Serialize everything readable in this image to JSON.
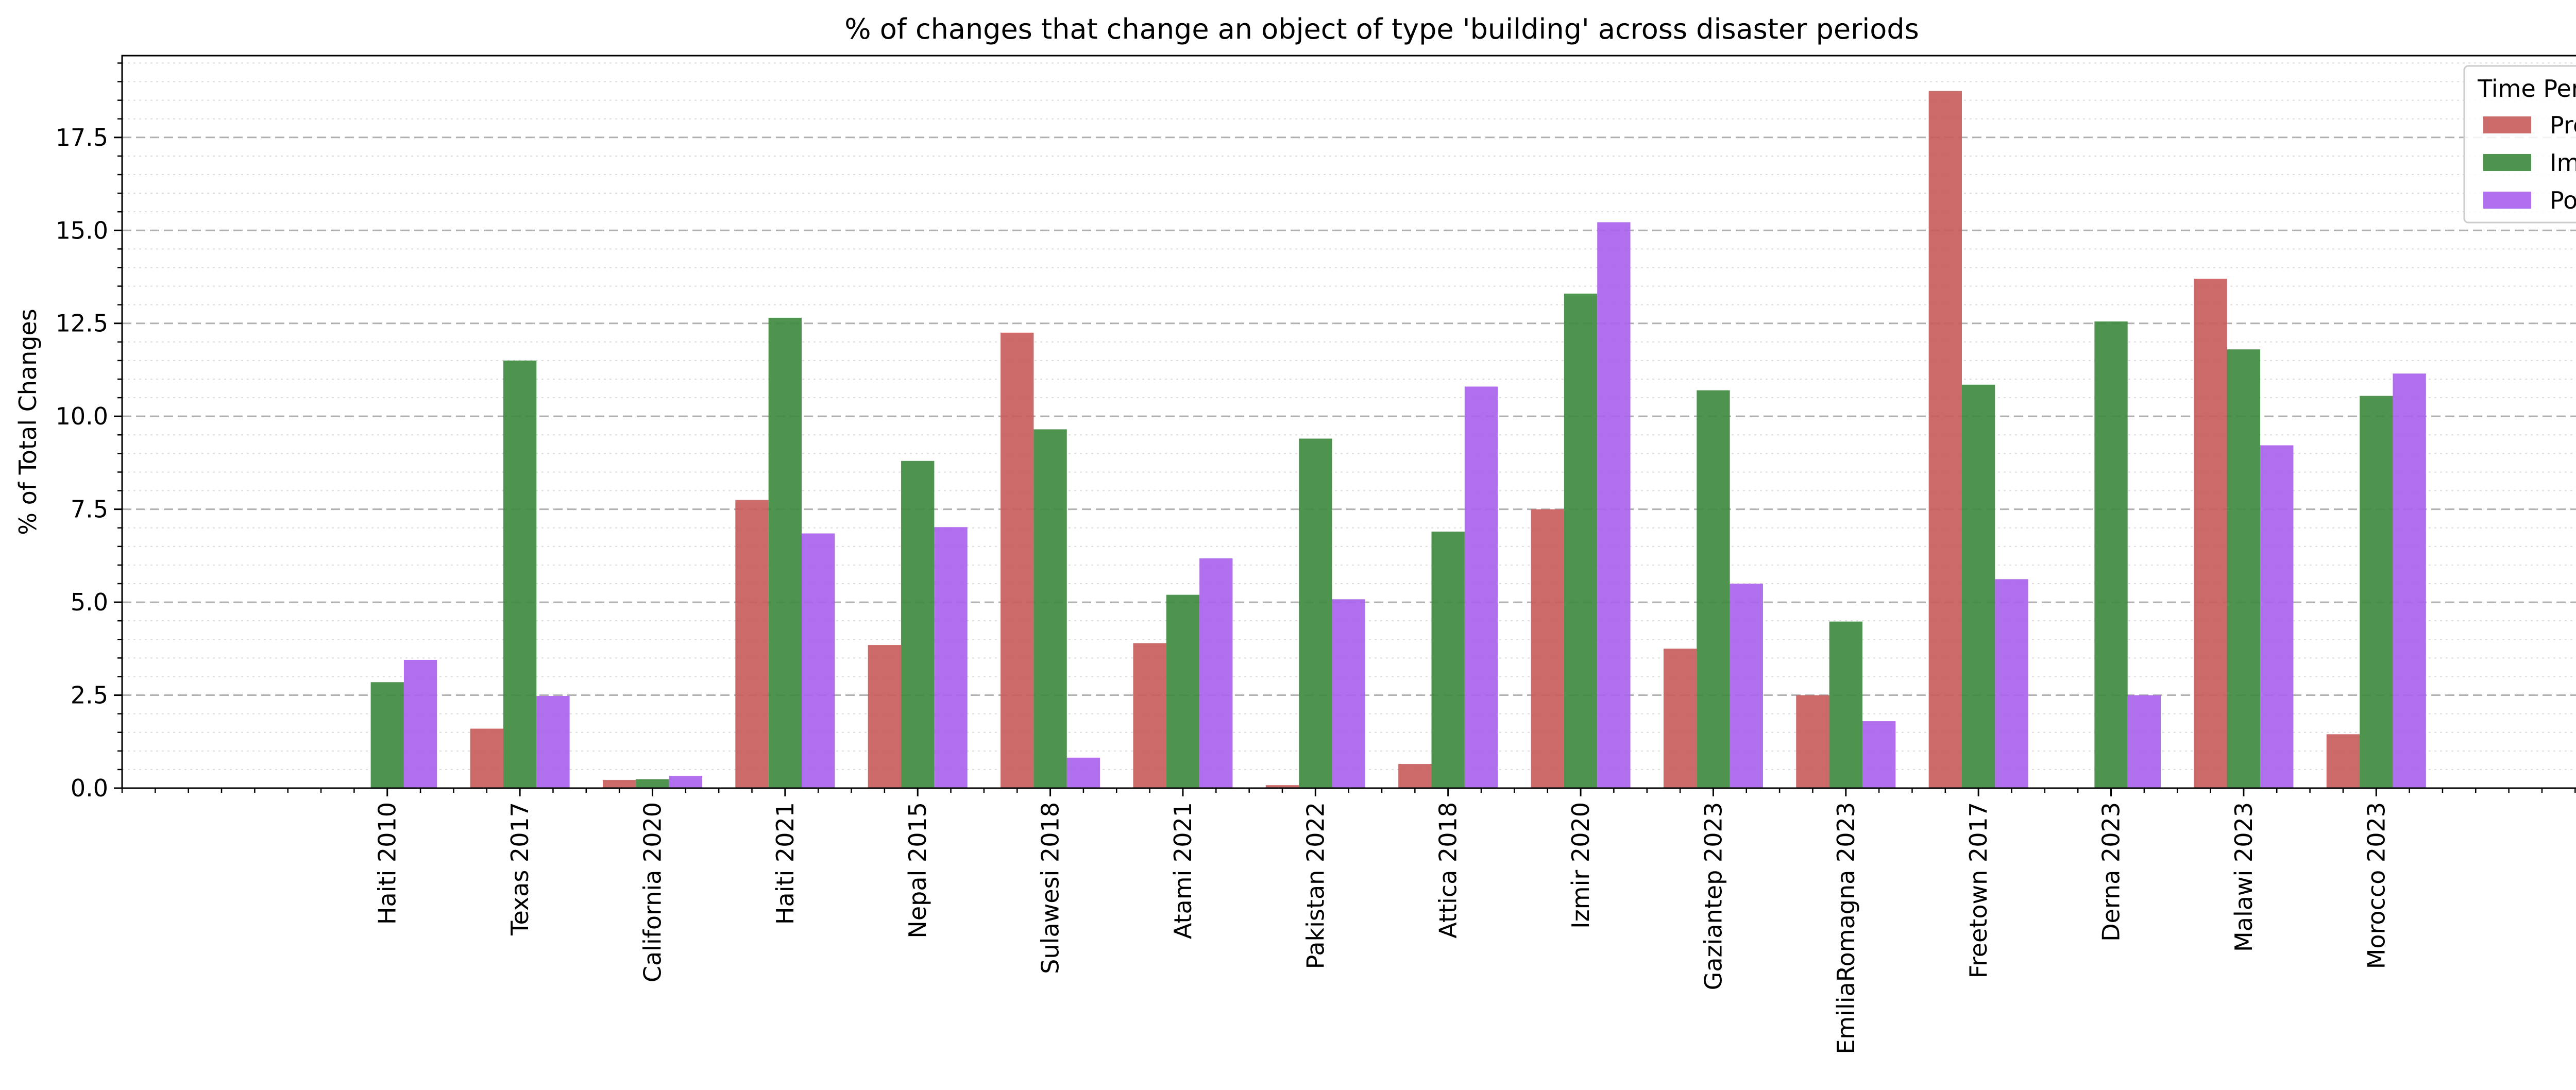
{
  "chart_data": {
    "type": "bar",
    "title": "% of changes that change an object of type 'building' across disaster periods",
    "xlabel": "",
    "ylabel": "% of Total Changes",
    "ylim": [
      0,
      19.7
    ],
    "y_ticks": [
      "0.0",
      "2.5",
      "5.0",
      "7.5",
      "10.0",
      "12.5",
      "15.0",
      "17.5"
    ],
    "grid": true,
    "legend_title": "Time Period",
    "legend_position": "top-right",
    "categories": [
      "Haiti 2010",
      "Texas 2017",
      "California 2020",
      "Haiti 2021",
      "Nepal 2015",
      "Sulawesi 2018",
      "Atami 2021",
      "Pakistan 2022",
      "Attica 2018",
      "Izmir 2020",
      "Gaziantep 2023",
      "EmiliaRomagna 2023",
      "Freetown 2017",
      "Derna 2023",
      "Malawi 2023",
      "Morocco 2023"
    ],
    "series": [
      {
        "name": "Pre",
        "color": "#c85c5c",
        "values": [
          0,
          1.6,
          0.22,
          7.75,
          3.85,
          12.25,
          3.9,
          0.08,
          0.65,
          7.5,
          3.75,
          2.5,
          18.75,
          0,
          13.7,
          1.45
        ]
      },
      {
        "name": "Imm",
        "color": "#3f8a3f",
        "values": [
          2.85,
          11.5,
          0.24,
          12.65,
          8.8,
          9.65,
          5.2,
          9.4,
          6.9,
          13.3,
          10.7,
          4.48,
          10.85,
          12.55,
          11.8,
          10.55
        ]
      },
      {
        "name": "Post",
        "color": "#a963ea",
        "values": [
          3.45,
          2.48,
          0.33,
          6.85,
          7.02,
          0.82,
          6.18,
          5.08,
          10.8,
          15.22,
          5.5,
          1.8,
          5.62,
          2.5,
          9.22,
          11.15
        ]
      }
    ]
  }
}
